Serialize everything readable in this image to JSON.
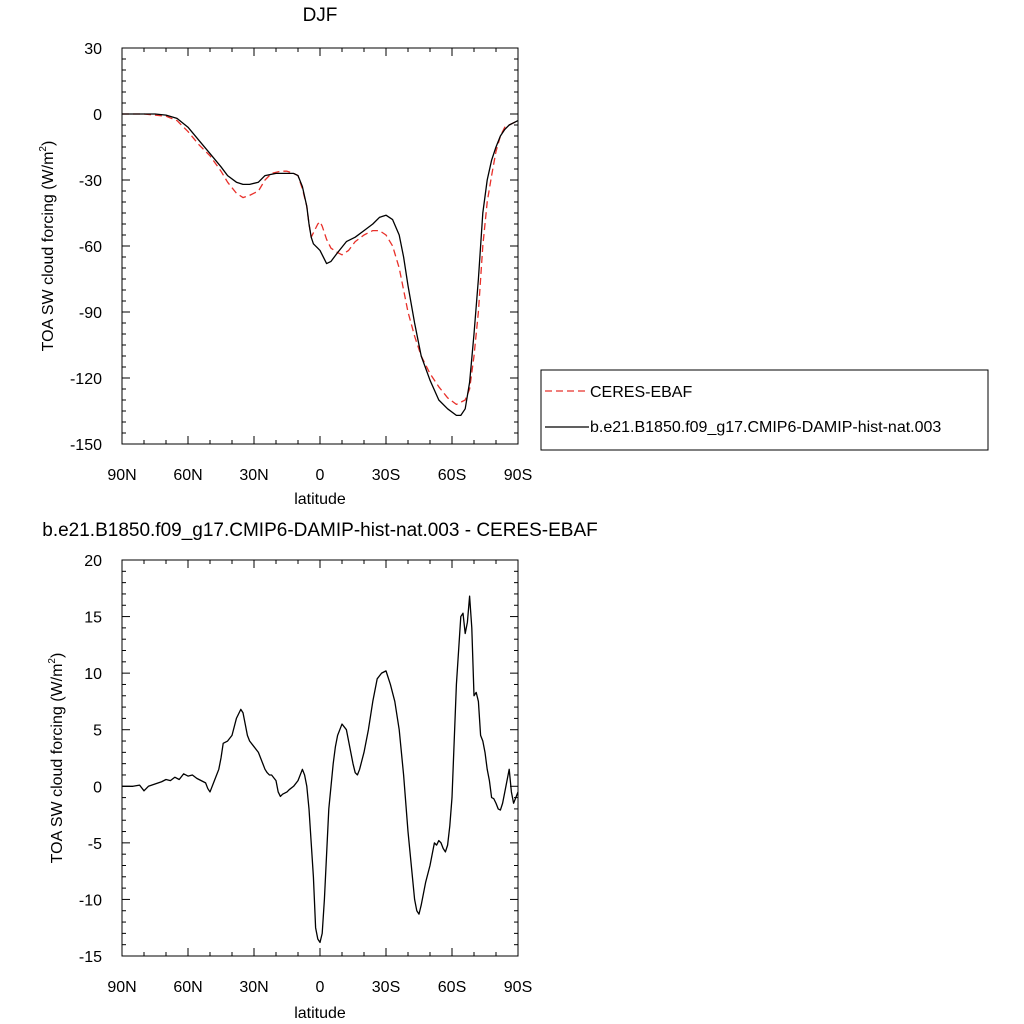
{
  "chart_data": [
    {
      "type": "line",
      "title": "DJF",
      "xlabel": "latitude",
      "ylabel": "TOA SW cloud forcing (W/m",
      "ylabel_superscript": "2",
      "ylabel_suffix": ")",
      "x_tick_values": [
        90,
        60,
        30,
        0,
        -30,
        -60,
        -90
      ],
      "x_tick_labels": [
        "90N",
        "60N",
        "30N",
        "0",
        "30S",
        "60S",
        "90S"
      ],
      "xlim": [
        90,
        -90
      ],
      "y_ticks": [
        30,
        0,
        -30,
        -60,
        -90,
        -120,
        -150
      ],
      "y_tick_labels": [
        "30",
        "0",
        "-30",
        "-60",
        "-90",
        "-120",
        "-150"
      ],
      "ylim": [
        -150,
        30
      ],
      "grid": false,
      "legend_placement": "right",
      "series": [
        {
          "name": "CERES-EBAF",
          "color": "#e8302a",
          "dash": "dashed",
          "points": [
            [
              90,
              0
            ],
            [
              85,
              0
            ],
            [
              80,
              0
            ],
            [
              75,
              -0.5
            ],
            [
              70,
              -1
            ],
            [
              65,
              -3
            ],
            [
              60,
              -8
            ],
            [
              55,
              -14
            ],
            [
              50,
              -19
            ],
            [
              45,
              -26
            ],
            [
              42,
              -31
            ],
            [
              38,
              -36
            ],
            [
              35,
              -38
            ],
            [
              32,
              -37
            ],
            [
              28,
              -35
            ],
            [
              25,
              -30
            ],
            [
              22,
              -27
            ],
            [
              18,
              -26
            ],
            [
              15,
              -26
            ],
            [
              12,
              -27
            ],
            [
              10,
              -28
            ],
            [
              8,
              -34
            ],
            [
              6,
              -42
            ],
            [
              5,
              -50
            ],
            [
              4,
              -56
            ],
            [
              3,
              -54
            ],
            [
              1,
              -50
            ],
            [
              0,
              -49
            ],
            [
              -1,
              -51
            ],
            [
              -3,
              -57
            ],
            [
              -5,
              -61
            ],
            [
              -8,
              -63
            ],
            [
              -10,
              -64
            ],
            [
              -13,
              -62
            ],
            [
              -16,
              -58
            ],
            [
              -20,
              -55
            ],
            [
              -24,
              -53
            ],
            [
              -27,
              -53
            ],
            [
              -30,
              -55
            ],
            [
              -33,
              -60
            ],
            [
              -36,
              -70
            ],
            [
              -38,
              -80
            ],
            [
              -40,
              -90
            ],
            [
              -43,
              -101
            ],
            [
              -46,
              -110
            ],
            [
              -50,
              -118
            ],
            [
              -54,
              -124
            ],
            [
              -58,
              -129
            ],
            [
              -62,
              -132
            ],
            [
              -64,
              -131
            ],
            [
              -66,
              -130
            ],
            [
              -68,
              -125
            ],
            [
              -70,
              -110
            ],
            [
              -72,
              -90
            ],
            [
              -74,
              -60
            ],
            [
              -76,
              -40
            ],
            [
              -78,
              -28
            ],
            [
              -80,
              -17
            ],
            [
              -82,
              -10
            ],
            [
              -84,
              -6
            ],
            [
              -86,
              -5
            ],
            [
              -88,
              -4
            ],
            [
              -90,
              -3
            ]
          ]
        },
        {
          "name": "b.e21.B1850.f09_g17.CMIP6-DAMIP-hist-nat.003",
          "color": "#000000",
          "dash": "solid",
          "points": [
            [
              90,
              0
            ],
            [
              85,
              0
            ],
            [
              80,
              0
            ],
            [
              75,
              0
            ],
            [
              70,
              -0.5
            ],
            [
              65,
              -2
            ],
            [
              60,
              -6
            ],
            [
              55,
              -12
            ],
            [
              50,
              -18
            ],
            [
              45,
              -24
            ],
            [
              42,
              -28
            ],
            [
              38,
              -31
            ],
            [
              35,
              -32
            ],
            [
              32,
              -32
            ],
            [
              28,
              -31
            ],
            [
              25,
              -28
            ],
            [
              20,
              -27
            ],
            [
              15,
              -27
            ],
            [
              12,
              -27
            ],
            [
              10,
              -28
            ],
            [
              8,
              -33
            ],
            [
              6,
              -42
            ],
            [
              5,
              -50
            ],
            [
              4,
              -56
            ],
            [
              3,
              -59
            ],
            [
              1,
              -61
            ],
            [
              0,
              -62
            ],
            [
              -1,
              -64
            ],
            [
              -3,
              -68
            ],
            [
              -5,
              -67
            ],
            [
              -8,
              -63
            ],
            [
              -12,
              -58
            ],
            [
              -16,
              -56
            ],
            [
              -20,
              -53
            ],
            [
              -24,
              -50
            ],
            [
              -27,
              -47
            ],
            [
              -30,
              -46
            ],
            [
              -33,
              -48
            ],
            [
              -36,
              -55
            ],
            [
              -38,
              -65
            ],
            [
              -40,
              -78
            ],
            [
              -43,
              -95
            ],
            [
              -46,
              -110
            ],
            [
              -50,
              -121
            ],
            [
              -54,
              -130
            ],
            [
              -58,
              -134
            ],
            [
              -62,
              -137
            ],
            [
              -64,
              -137
            ],
            [
              -66,
              -134
            ],
            [
              -68,
              -122
            ],
            [
              -70,
              -100
            ],
            [
              -72,
              -75
            ],
            [
              -74,
              -45
            ],
            [
              -76,
              -30
            ],
            [
              -78,
              -21
            ],
            [
              -80,
              -15
            ],
            [
              -82,
              -10
            ],
            [
              -84,
              -7
            ],
            [
              -86,
              -5
            ],
            [
              -88,
              -4
            ],
            [
              -90,
              -3
            ]
          ]
        }
      ]
    },
    {
      "type": "line",
      "title": "b.e21.B1850.f09_g17.CMIP6-DAMIP-hist-nat.003 - CERES-EBAF",
      "xlabel": "latitude",
      "ylabel": "TOA SW cloud forcing (W/m",
      "ylabel_superscript": "2",
      "ylabel_suffix": ")",
      "x_tick_values": [
        90,
        60,
        30,
        0,
        -30,
        -60,
        -90
      ],
      "x_tick_labels": [
        "90N",
        "60N",
        "30N",
        "0",
        "30S",
        "60S",
        "90S"
      ],
      "xlim": [
        90,
        -90
      ],
      "y_ticks": [
        20,
        15,
        10,
        5,
        0,
        -5,
        -10,
        -15
      ],
      "y_tick_labels": [
        "20",
        "15",
        "10",
        "5",
        "0",
        "-5",
        "-10",
        "-15"
      ],
      "ylim": [
        -15,
        20
      ],
      "grid": false,
      "series": [
        {
          "color": "#000000",
          "dash": "solid",
          "points": [
            [
              90,
              0
            ],
            [
              85,
              0
            ],
            [
              82,
              0.1
            ],
            [
              80,
              -0.4
            ],
            [
              78,
              0
            ],
            [
              75,
              0.2
            ],
            [
              72,
              0.4
            ],
            [
              70,
              0.6
            ],
            [
              68,
              0.5
            ],
            [
              66,
              0.8
            ],
            [
              64,
              0.6
            ],
            [
              62,
              1.1
            ],
            [
              60,
              0.9
            ],
            [
              58,
              1
            ],
            [
              56,
              0.7
            ],
            [
              54,
              0.5
            ],
            [
              52,
              0.3
            ],
            [
              51,
              -0.2
            ],
            [
              50,
              -0.5
            ],
            [
              48,
              0.5
            ],
            [
              46,
              1.5
            ],
            [
              45,
              2.5
            ],
            [
              44,
              3.8
            ],
            [
              42,
              4
            ],
            [
              40,
              4.5
            ],
            [
              38,
              6
            ],
            [
              36,
              6.8
            ],
            [
              35,
              6.5
            ],
            [
              34,
              5.5
            ],
            [
              33,
              4.5
            ],
            [
              32,
              4
            ],
            [
              30,
              3.5
            ],
            [
              28,
              3
            ],
            [
              27,
              2.5
            ],
            [
              26,
              2
            ],
            [
              25,
              1.5
            ],
            [
              24,
              1.2
            ],
            [
              23,
              1
            ],
            [
              22,
              1
            ],
            [
              20,
              0.5
            ],
            [
              19,
              -0.5
            ],
            [
              18,
              -0.9
            ],
            [
              17,
              -0.7
            ],
            [
              16,
              -0.6
            ],
            [
              15,
              -0.5
            ],
            [
              14,
              -0.3
            ],
            [
              12,
              0
            ],
            [
              10,
              0.5
            ],
            [
              8,
              1.5
            ],
            [
              7,
              1
            ],
            [
              6,
              0
            ],
            [
              5,
              -2
            ],
            [
              4,
              -5
            ],
            [
              3,
              -8
            ],
            [
              2,
              -12.5
            ],
            [
              1,
              -13.5
            ],
            [
              0,
              -13.8
            ],
            [
              -1,
              -13
            ],
            [
              -2,
              -10
            ],
            [
              -3,
              -6
            ],
            [
              -4,
              -2
            ],
            [
              -5,
              0
            ],
            [
              -6,
              2
            ],
            [
              -7,
              3.5
            ],
            [
              -8,
              4.5
            ],
            [
              -10,
              5.5
            ],
            [
              -12,
              5
            ],
            [
              -14,
              3
            ],
            [
              -15,
              2
            ],
            [
              -16,
              1.2
            ],
            [
              -17,
              1
            ],
            [
              -18,
              1.5
            ],
            [
              -20,
              3
            ],
            [
              -22,
              5
            ],
            [
              -24,
              7.5
            ],
            [
              -26,
              9.5
            ],
            [
              -28,
              10
            ],
            [
              -30,
              10.2
            ],
            [
              -32,
              9
            ],
            [
              -34,
              7.5
            ],
            [
              -36,
              5
            ],
            [
              -38,
              1
            ],
            [
              -40,
              -4
            ],
            [
              -42,
              -8
            ],
            [
              -43,
              -10
            ],
            [
              -44,
              -11
            ],
            [
              -45,
              -11.3
            ],
            [
              -46,
              -10.5
            ],
            [
              -48,
              -8.5
            ],
            [
              -50,
              -7
            ],
            [
              -51,
              -6
            ],
            [
              -52,
              -5
            ],
            [
              -53,
              -5.2
            ],
            [
              -54,
              -4.8
            ],
            [
              -55,
              -5
            ],
            [
              -56,
              -5.5
            ],
            [
              -57,
              -5.8
            ],
            [
              -58,
              -5.2
            ],
            [
              -59,
              -3.5
            ],
            [
              -60,
              -1
            ],
            [
              -61,
              4
            ],
            [
              -62,
              9
            ],
            [
              -63,
              12
            ],
            [
              -64,
              15
            ],
            [
              -65,
              15.3
            ],
            [
              -66,
              13.5
            ],
            [
              -67,
              14.5
            ],
            [
              -68,
              16.8
            ],
            [
              -69,
              14
            ],
            [
              -70,
              8
            ],
            [
              -71,
              8.3
            ],
            [
              -72,
              7.5
            ],
            [
              -73,
              4.5
            ],
            [
              -74,
              4
            ],
            [
              -75,
              3
            ],
            [
              -76,
              1.5
            ],
            [
              -77,
              0.5
            ],
            [
              -78,
              -1
            ],
            [
              -79,
              -1.1
            ],
            [
              -80,
              -1.5
            ],
            [
              -81,
              -2
            ],
            [
              -82,
              -2.1
            ],
            [
              -83,
              -1.5
            ],
            [
              -84,
              -0.5
            ],
            [
              -85,
              0.5
            ],
            [
              -86,
              1.5
            ],
            [
              -87,
              -0.5
            ],
            [
              -88,
              -1.5
            ],
            [
              -89,
              -1
            ],
            [
              -90,
              -0.5
            ]
          ]
        }
      ]
    }
  ]
}
